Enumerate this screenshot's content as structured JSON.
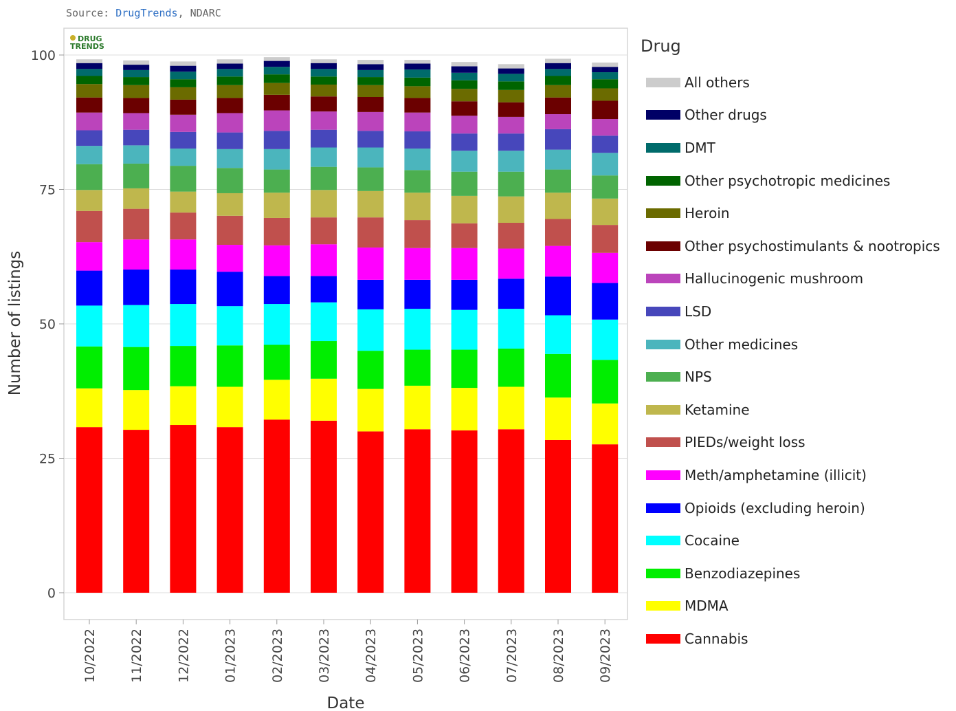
{
  "source": {
    "prefix": "Source: ",
    "link": "DrugTrends",
    "suffix": ", NDARC"
  },
  "logo": {
    "line1": "DRUG",
    "line2": "TRENDS"
  },
  "chart_data": {
    "type": "bar",
    "stacked": true,
    "title": "",
    "xlabel": "Date",
    "ylabel": "Number of listings",
    "ylim": [
      0,
      100
    ],
    "yticks": [
      0,
      25,
      50,
      75,
      100
    ],
    "grid": true,
    "legend_title": "Drug",
    "legend_position": "right",
    "categories": [
      "10/2022",
      "11/2022",
      "12/2022",
      "01/2023",
      "02/2023",
      "03/2023",
      "04/2023",
      "05/2023",
      "06/2023",
      "07/2023",
      "08/2023",
      "09/2023"
    ],
    "series": [
      {
        "name": "Cannabis",
        "color": "#ff0000",
        "values": [
          30.8,
          30.3,
          31.2,
          30.8,
          32.2,
          32.0,
          30.0,
          30.4,
          30.2,
          30.4,
          28.4,
          27.6
        ]
      },
      {
        "name": "MDMA",
        "color": "#ffff00",
        "values": [
          7.2,
          7.4,
          7.2,
          7.5,
          7.4,
          7.8,
          7.9,
          8.1,
          7.9,
          7.9,
          7.9,
          7.6
        ]
      },
      {
        "name": "Benzodiazepines",
        "color": "#00ee00",
        "values": [
          7.8,
          8.0,
          7.5,
          7.7,
          6.5,
          7.0,
          7.1,
          6.7,
          7.1,
          7.1,
          8.1,
          8.1
        ]
      },
      {
        "name": "Cocaine",
        "color": "#00ffff",
        "values": [
          7.6,
          7.8,
          7.8,
          7.3,
          7.6,
          7.2,
          7.7,
          7.6,
          7.4,
          7.4,
          7.2,
          7.5
        ]
      },
      {
        "name": "Opioids (excluding heroin)",
        "color": "#0000ff",
        "values": [
          6.5,
          6.6,
          6.4,
          6.4,
          5.2,
          4.9,
          5.5,
          5.4,
          5.6,
          5.6,
          7.2,
          6.8
        ]
      },
      {
        "name": "Meth/amphetamine (illicit)",
        "color": "#ff00ff",
        "values": [
          5.3,
          5.6,
          5.6,
          5.0,
          5.7,
          5.9,
          6.0,
          5.9,
          5.9,
          5.6,
          5.7,
          5.6
        ]
      },
      {
        "name": "PIEDs/weight loss",
        "color": "#c0504d",
        "values": [
          5.8,
          5.7,
          5.0,
          5.4,
          5.1,
          5.0,
          5.6,
          5.2,
          4.6,
          4.8,
          5.0,
          5.2
        ]
      },
      {
        "name": "Ketamine",
        "color": "#bfb74d",
        "values": [
          3.9,
          3.8,
          3.9,
          4.2,
          4.7,
          5.1,
          4.9,
          5.1,
          5.1,
          4.9,
          4.9,
          4.9
        ]
      },
      {
        "name": "NPS",
        "color": "#4caf50",
        "values": [
          4.8,
          4.6,
          4.8,
          4.7,
          4.3,
          4.3,
          4.4,
          4.2,
          4.5,
          4.6,
          4.3,
          4.3
        ]
      },
      {
        "name": "Other medicines",
        "color": "#4bb5bd",
        "values": [
          3.4,
          3.4,
          3.2,
          3.5,
          3.8,
          3.6,
          3.7,
          4.0,
          3.9,
          3.9,
          3.7,
          4.2
        ]
      },
      {
        "name": "LSD",
        "color": "#4747bb",
        "values": [
          2.9,
          2.9,
          3.1,
          3.1,
          3.4,
          3.3,
          3.1,
          3.2,
          3.2,
          3.2,
          3.8,
          3.2
        ]
      },
      {
        "name": "Hallucinogenic mushroom",
        "color": "#bb44bb",
        "values": [
          3.3,
          3.1,
          3.2,
          3.6,
          3.8,
          3.4,
          3.5,
          3.5,
          3.3,
          3.1,
          2.8,
          3.1
        ]
      },
      {
        "name": "Other psychostimulants & nootropics",
        "color": "#6b0000",
        "values": [
          2.8,
          2.8,
          2.8,
          2.8,
          2.9,
          2.8,
          2.8,
          2.7,
          2.7,
          2.7,
          3.1,
          3.4
        ]
      },
      {
        "name": "Heroin",
        "color": "#6b6b00",
        "values": [
          2.5,
          2.4,
          2.3,
          2.4,
          2.2,
          2.2,
          2.2,
          2.2,
          2.3,
          2.3,
          2.3,
          2.3
        ]
      },
      {
        "name": "Other psychotropic medicines",
        "color": "#006400",
        "values": [
          1.5,
          1.5,
          1.5,
          1.6,
          1.6,
          1.5,
          1.5,
          1.6,
          1.6,
          1.6,
          1.7,
          1.7
        ]
      },
      {
        "name": "DMT",
        "color": "#006b6b",
        "values": [
          1.3,
          1.3,
          1.4,
          1.4,
          1.4,
          1.4,
          1.3,
          1.5,
          1.4,
          1.4,
          1.3,
          1.3
        ]
      },
      {
        "name": "Other drugs",
        "color": "#000066",
        "values": [
          1.1,
          1.0,
          1.1,
          1.0,
          1.1,
          1.1,
          1.1,
          1.1,
          1.2,
          1.0,
          1.1,
          1.0
        ]
      },
      {
        "name": "All others",
        "color": "#cccccc",
        "values": [
          0.7,
          0.8,
          0.8,
          0.8,
          0.7,
          0.7,
          0.8,
          0.7,
          0.8,
          0.8,
          0.8,
          0.8
        ]
      }
    ]
  }
}
